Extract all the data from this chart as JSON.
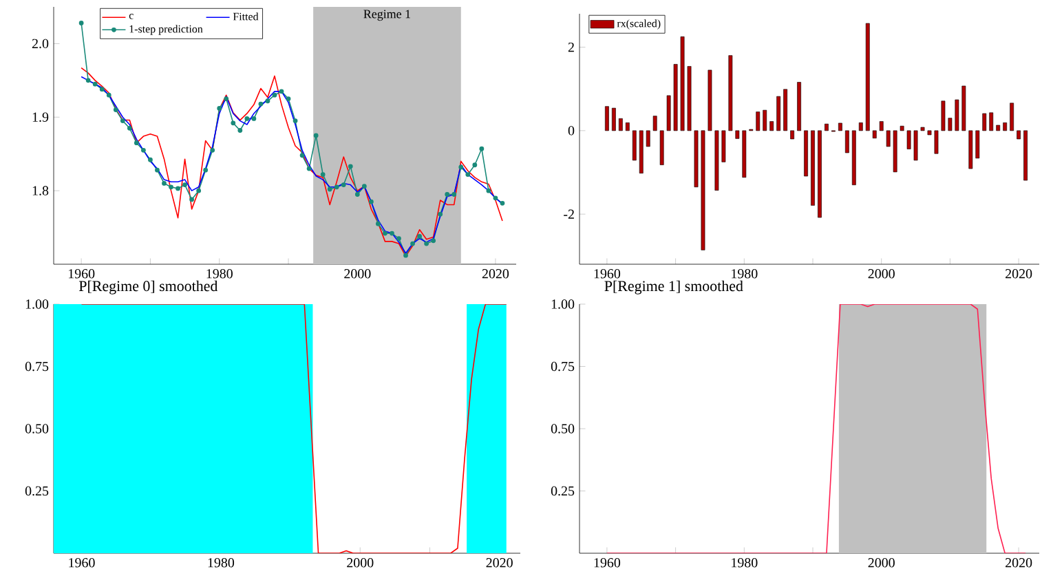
{
  "chart_data": [
    {
      "type": "line",
      "x": [
        1960,
        1961,
        1962,
        1963,
        1964,
        1965,
        1966,
        1967,
        1968,
        1969,
        1970,
        1971,
        1972,
        1973,
        1974,
        1975,
        1976,
        1977,
        1978,
        1979,
        1980,
        1981,
        1982,
        1983,
        1984,
        1985,
        1986,
        1987,
        1988,
        1989,
        1990,
        1991,
        1992,
        1993,
        1994,
        1995,
        1996,
        1997,
        1998,
        1999,
        2000,
        2001,
        2002,
        2003,
        2004,
        2005,
        2006,
        2007,
        2008,
        2009,
        2010,
        2011,
        2012,
        2013,
        2014,
        2015,
        2016,
        2017,
        2018,
        2019,
        2020,
        2021
      ],
      "series": [
        {
          "name": "c",
          "color": "#ff0000",
          "values": [
            1.967,
            1.96,
            1.95,
            1.942,
            1.933,
            1.911,
            1.896,
            1.896,
            1.865,
            1.874,
            1.877,
            1.874,
            1.843,
            1.8,
            1.763,
            1.843,
            1.775,
            1.8,
            1.868,
            1.855,
            1.911,
            1.93,
            1.906,
            1.896,
            1.905,
            1.917,
            1.939,
            1.927,
            1.956,
            1.917,
            1.886,
            1.861,
            1.852,
            1.83,
            1.821,
            1.818,
            1.781,
            1.812,
            1.846,
            1.818,
            1.8,
            1.806,
            1.775,
            1.756,
            1.731,
            1.731,
            1.728,
            1.711,
            1.725,
            1.747,
            1.734,
            1.737,
            1.787,
            1.781,
            1.781,
            1.84,
            1.827,
            1.818,
            1.812,
            1.809,
            1.787,
            1.759
          ]
        },
        {
          "name": "1-step prediction",
          "color": "#1a8a7a",
          "marker": "circle",
          "values": [
            2.028,
            1.95,
            1.945,
            1.938,
            1.93,
            1.91,
            1.895,
            1.885,
            1.865,
            1.855,
            1.842,
            1.828,
            1.81,
            1.805,
            1.803,
            1.808,
            1.788,
            1.8,
            1.828,
            1.855,
            1.912,
            1.925,
            1.892,
            1.882,
            1.898,
            1.898,
            1.918,
            1.922,
            1.93,
            1.935,
            1.925,
            1.895,
            1.848,
            1.83,
            1.875,
            1.822,
            1.802,
            1.805,
            1.808,
            1.833,
            1.795,
            1.806,
            1.785,
            1.755,
            1.742,
            1.742,
            1.735,
            1.712,
            1.728,
            1.738,
            1.728,
            1.732,
            1.768,
            1.795,
            1.795,
            1.832,
            1.822,
            1.835,
            1.857,
            1.8,
            1.79,
            1.783
          ]
        },
        {
          "name": "Fitted",
          "color": "#0000ff",
          "values": [
            1.955,
            1.95,
            1.945,
            1.94,
            1.93,
            1.915,
            1.9,
            1.89,
            1.87,
            1.855,
            1.84,
            1.83,
            1.815,
            1.812,
            1.812,
            1.815,
            1.8,
            1.805,
            1.83,
            1.86,
            1.905,
            1.928,
            1.905,
            1.895,
            1.89,
            1.905,
            1.915,
            1.925,
            1.935,
            1.935,
            1.92,
            1.89,
            1.855,
            1.835,
            1.82,
            1.815,
            1.805,
            1.805,
            1.81,
            1.808,
            1.798,
            1.806,
            1.785,
            1.76,
            1.745,
            1.742,
            1.73,
            1.715,
            1.728,
            1.735,
            1.73,
            1.735,
            1.765,
            1.792,
            1.795,
            1.835,
            1.822,
            1.815,
            1.808,
            1.8,
            1.79,
            1.782
          ]
        }
      ],
      "bands": [
        {
          "axis": "x",
          "from": 1993.6,
          "to": 2015,
          "label": "Regime 1",
          "color": "#c0c0c0"
        }
      ],
      "xlim": [
        1956,
        2023
      ],
      "ylim": [
        1.7,
        2.05
      ],
      "xticks": [
        1960,
        {
          "value": 1970,
          "label": null
        },
        1980,
        {
          "value": 1990,
          "label": null
        },
        2000,
        {
          "value": 2010,
          "label": null
        },
        2020
      ],
      "yticks": [
        1.8,
        1.9,
        {
          "value": 2,
          "label": "2.0"
        }
      ],
      "legend": "top left"
    },
    {
      "type": "bar",
      "x": [
        1960,
        1961,
        1962,
        1963,
        1964,
        1965,
        1966,
        1967,
        1968,
        1969,
        1970,
        1971,
        1972,
        1973,
        1974,
        1975,
        1976,
        1977,
        1978,
        1979,
        1980,
        1981,
        1982,
        1983,
        1984,
        1985,
        1986,
        1987,
        1988,
        1989,
        1990,
        1991,
        1992,
        1993,
        1994,
        1995,
        1996,
        1997,
        1998,
        1999,
        2000,
        2001,
        2002,
        2003,
        2004,
        2005,
        2006,
        2007,
        2008,
        2009,
        2010,
        2011,
        2012,
        2013,
        2014,
        2015,
        2016,
        2017,
        2018,
        2019,
        2020,
        2021
      ],
      "series": [
        {
          "name": "rx(scaled)",
          "color": "#b00000",
          "values": [
            0.58,
            0.54,
            0.29,
            0.19,
            -0.71,
            -1.02,
            -0.38,
            0.35,
            -0.82,
            0.84,
            1.59,
            2.25,
            1.54,
            -1.35,
            -2.86,
            1.45,
            -1.43,
            -0.75,
            1.8,
            -0.19,
            -1.12,
            0.03,
            0.45,
            0.49,
            0.22,
            0.82,
            0.99,
            -0.2,
            1.16,
            -1.09,
            -1.79,
            -2.08,
            0.16,
            -0.02,
            0.18,
            -0.53,
            -1.3,
            0.19,
            2.57,
            -0.18,
            0.22,
            -0.38,
            -0.99,
            0.11,
            -0.44,
            -0.71,
            0.08,
            -0.1,
            -0.55,
            0.71,
            0.3,
            0.74,
            1.07,
            -0.91,
            -0.66,
            0.41,
            0.43,
            0.13,
            0.19,
            0.66,
            -0.2,
            -1.19
          ]
        }
      ],
      "xlim": [
        1956,
        2023
      ],
      "ylim": [
        -3.2,
        2.8
      ],
      "xticks": [
        1960,
        {
          "value": 1970,
          "label": null
        },
        1980,
        {
          "value": 1990,
          "label": null
        },
        2000,
        {
          "value": 2010,
          "label": null
        },
        2020
      ],
      "yticks": [
        -2,
        0,
        2
      ],
      "legend": "top left"
    },
    {
      "type": "line",
      "title": "P[Regime 0] smoothed",
      "x": [
        1960,
        1961,
        1962,
        1963,
        1964,
        1965,
        1966,
        1967,
        1968,
        1969,
        1970,
        1971,
        1972,
        1973,
        1974,
        1975,
        1976,
        1977,
        1978,
        1979,
        1980,
        1981,
        1982,
        1983,
        1984,
        1985,
        1986,
        1987,
        1988,
        1989,
        1990,
        1991,
        1992,
        1993,
        1994,
        1995,
        1996,
        1997,
        1998,
        1999,
        2000,
        2001,
        2002,
        2003,
        2004,
        2005,
        2006,
        2007,
        2008,
        2009,
        2010,
        2011,
        2012,
        2013,
        2014,
        2015,
        2016,
        2017,
        2018,
        2019,
        2020,
        2021
      ],
      "series": [
        {
          "color": "#ff0000",
          "values": [
            1,
            1,
            1,
            1,
            1,
            1,
            1,
            1,
            1,
            1,
            1,
            1,
            1,
            1,
            1,
            1,
            1,
            1,
            1,
            1,
            1,
            1,
            1,
            1,
            1,
            1,
            1,
            1,
            1,
            1,
            1,
            1,
            1,
            0.5,
            0,
            0,
            0,
            0,
            0.01,
            0,
            0,
            0,
            0,
            0,
            0,
            0,
            0,
            0,
            0,
            0,
            0,
            0,
            0,
            0,
            0.02,
            0.38,
            0.7,
            0.9,
            1,
            1,
            1,
            1
          ]
        }
      ],
      "bands": [
        {
          "axis": "x",
          "from": 1956,
          "to": 1993.2,
          "color": "#00ffff"
        },
        {
          "axis": "x",
          "from": 2015.3,
          "to": 2021,
          "color": "#00ffff"
        }
      ],
      "xlim": [
        1956,
        2023
      ],
      "ylim": [
        0,
        1
      ],
      "xticks": [
        1960,
        {
          "value": 1970,
          "label": null
        },
        1980,
        {
          "value": 1990,
          "label": null
        },
        2000,
        {
          "value": 2010,
          "label": null
        },
        2020
      ],
      "yticks": [
        0.25,
        {
          "value": 0.5,
          "label": "0.50"
        },
        0.75,
        {
          "value": 1,
          "label": "1.00"
        }
      ]
    },
    {
      "type": "line",
      "title": "P[Regime 1] smoothed",
      "x": [
        1960,
        1961,
        1962,
        1963,
        1964,
        1965,
        1966,
        1967,
        1968,
        1969,
        1970,
        1971,
        1972,
        1973,
        1974,
        1975,
        1976,
        1977,
        1978,
        1979,
        1980,
        1981,
        1982,
        1983,
        1984,
        1985,
        1986,
        1987,
        1988,
        1989,
        1990,
        1991,
        1992,
        1993,
        1994,
        1995,
        1996,
        1997,
        1998,
        1999,
        2000,
        2001,
        2002,
        2003,
        2004,
        2005,
        2006,
        2007,
        2008,
        2009,
        2010,
        2011,
        2012,
        2013,
        2014,
        2015,
        2016,
        2017,
        2018,
        2019,
        2020,
        2021
      ],
      "series": [
        {
          "color": "#ff2050",
          "values": [
            0,
            0,
            0,
            0,
            0,
            0,
            0,
            0,
            0,
            0,
            0,
            0,
            0,
            0,
            0,
            0,
            0,
            0,
            0,
            0,
            0,
            0,
            0,
            0,
            0,
            0,
            0,
            0,
            0,
            0,
            0,
            0,
            0,
            0.5,
            1,
            1,
            1,
            1,
            0.99,
            1,
            1,
            1,
            1,
            1,
            1,
            1,
            1,
            1,
            1,
            1,
            1,
            1,
            1,
            1,
            0.98,
            0.62,
            0.3,
            0.1,
            0,
            0,
            0,
            0
          ]
        }
      ],
      "bands": [
        {
          "axis": "x",
          "from": 1993.8,
          "to": 2015.3,
          "color": "#c0c0c0"
        }
      ],
      "xlim": [
        1956,
        2023
      ],
      "ylim": [
        0,
        1
      ],
      "xticks": [
        1960,
        {
          "value": 1970,
          "label": null
        },
        1980,
        {
          "value": 1990,
          "label": null
        },
        2000,
        {
          "value": 2010,
          "label": null
        },
        2020
      ],
      "yticks": [
        0.25,
        {
          "value": 0.5,
          "label": "0.50"
        },
        0.75,
        {
          "value": 1,
          "label": "1.00"
        }
      ]
    }
  ]
}
